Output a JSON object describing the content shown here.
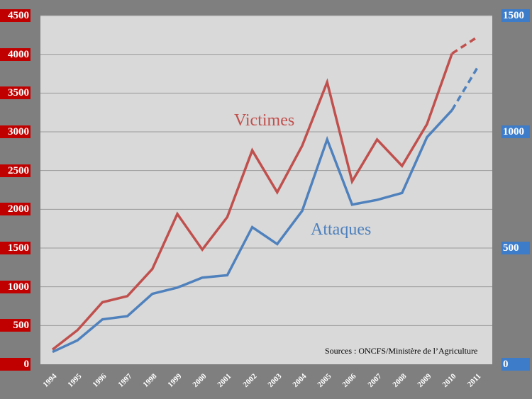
{
  "chart_data": {
    "type": "line",
    "categories": [
      "1994",
      "1995",
      "1996",
      "1997",
      "1998",
      "1999",
      "2000",
      "2001",
      "2002",
      "2003",
      "2004",
      "2005",
      "2006",
      "2007",
      "2008",
      "2009",
      "2010",
      "2011"
    ],
    "y_left": {
      "ylim": [
        0,
        4500
      ],
      "ticks": [
        "0",
        "500",
        "1000",
        "1500",
        "2000",
        "2500",
        "3000",
        "3500",
        "4000",
        "4500"
      ],
      "color": "#c00000"
    },
    "y_right": {
      "ylim": [
        0,
        1500
      ],
      "ticks": [
        "0",
        "500",
        "1000",
        "1500"
      ],
      "color": "#3d7cc9"
    },
    "grid": true,
    "series": [
      {
        "name": "Victimes",
        "axis": "left",
        "color": "#c0504d",
        "values": [
          190,
          440,
          800,
          880,
          1230,
          1940,
          1480,
          1900,
          2760,
          2220,
          2820,
          3640,
          2360,
          2900,
          2560,
          3100,
          4010,
          4220
        ],
        "dashed_from_index": 16
      },
      {
        "name": "Attaques",
        "axis": "right",
        "color": "#4f81bd",
        "values": [
          53,
          103,
          193,
          207,
          303,
          330,
          373,
          383,
          590,
          517,
          660,
          967,
          687,
          707,
          737,
          977,
          1093,
          1273
        ],
        "dashed_from_index": 16
      }
    ],
    "source": "Sources : ONCFS/Ministère de l’Agriculture"
  }
}
